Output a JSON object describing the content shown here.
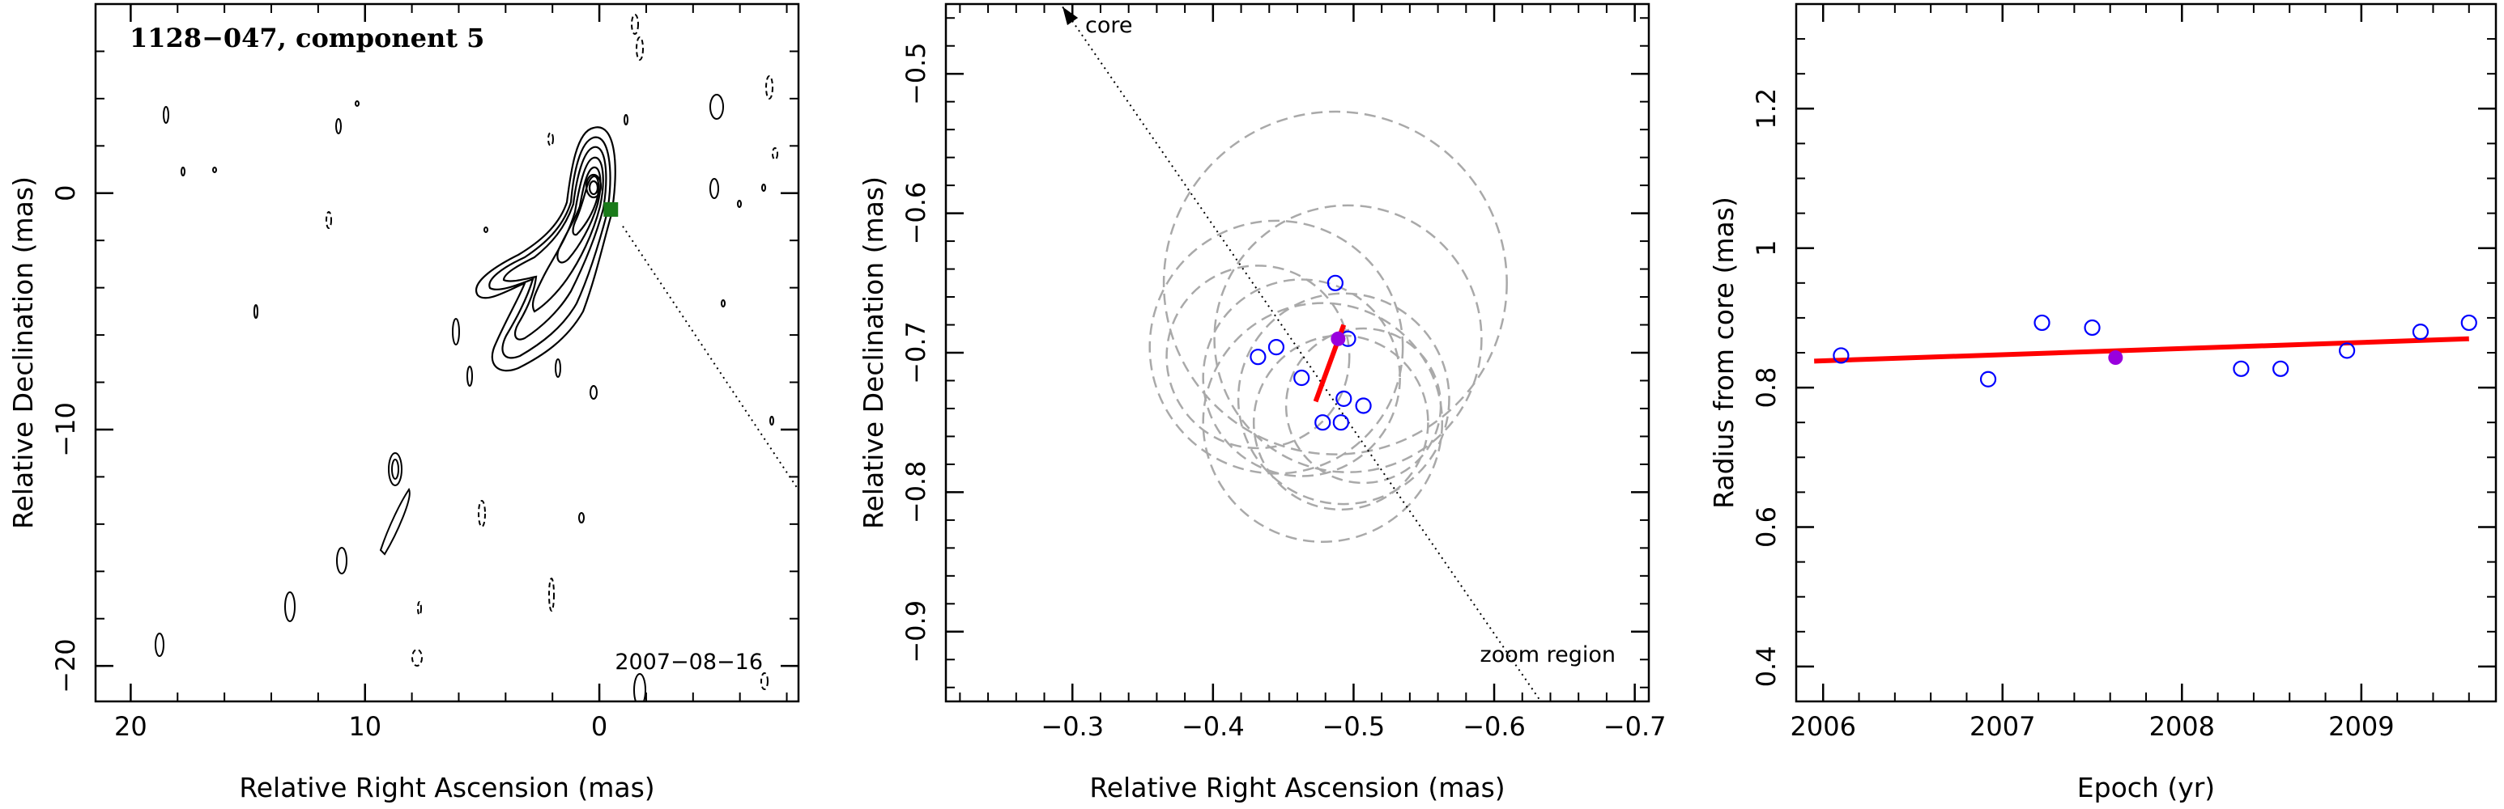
{
  "colors": {
    "contour": "#000000",
    "component_marker": "#1a7a1a",
    "circles": "#a9a9a9",
    "epoch_points": "#0000ff",
    "current_point": "#9900dd",
    "fit_line": "#ff0000",
    "direction_line": "#000000"
  },
  "chart_data": [
    {
      "type": "contour",
      "title": "1128−047, component 5",
      "epoch_label": "2007−08−16",
      "xlabel": "Relative Right Ascension (mas)",
      "ylabel": "Relative Declination (mas)",
      "xlim": [
        21.5,
        -8.5
      ],
      "ylim": [
        -21.5,
        8
      ],
      "xticks": [
        {
          "v": 20,
          "label": "20"
        },
        {
          "v": 10,
          "label": "10"
        },
        {
          "v": 0,
          "label": "0"
        }
      ],
      "yticks": [
        {
          "v": 0,
          "label": "0"
        },
        {
          "v": -10,
          "label": "−10"
        },
        {
          "v": -20,
          "label": "−20"
        }
      ],
      "component_position": {
        "x": -0.49,
        "y": -0.69
      },
      "direction_line": [
        {
          "x": -1.0,
          "y": -1.4
        },
        {
          "x": -8.8,
          "y": -13.0
        }
      ]
    },
    {
      "type": "scatter",
      "xlabel": "Relative Right Ascension (mas)",
      "ylabel": "Relative Declination (mas)",
      "xlim": [
        -0.21,
        -0.71
      ],
      "ylim": [
        -0.95,
        -0.45
      ],
      "xticks": [
        {
          "v": -0.3,
          "label": "−0.3"
        },
        {
          "v": -0.4,
          "label": "−0.4"
        },
        {
          "v": -0.5,
          "label": "−0.5"
        },
        {
          "v": -0.6,
          "label": "−0.6"
        },
        {
          "v": -0.7,
          "label": "−0.7"
        }
      ],
      "yticks": [
        {
          "v": -0.5,
          "label": "−0.5"
        },
        {
          "v": -0.6,
          "label": "−0.6"
        },
        {
          "v": -0.7,
          "label": "−0.7"
        },
        {
          "v": -0.8,
          "label": "−0.8"
        },
        {
          "v": -0.9,
          "label": "−0.9"
        }
      ],
      "core_label": "core",
      "zoom_label": "zoom region",
      "core_line": [
        {
          "x": -0.293,
          "y": -0.452
        },
        {
          "x": -0.64,
          "y": -0.96
        }
      ],
      "epoch_points": [
        {
          "x": -0.432,
          "y": -0.703
        },
        {
          "x": -0.445,
          "y": -0.696
        },
        {
          "x": -0.463,
          "y": -0.718
        },
        {
          "x": -0.478,
          "y": -0.75
        },
        {
          "x": -0.487,
          "y": -0.65
        },
        {
          "x": -0.491,
          "y": -0.75
        },
        {
          "x": -0.493,
          "y": -0.733
        },
        {
          "x": -0.496,
          "y": -0.69
        },
        {
          "x": -0.507,
          "y": -0.738
        }
      ],
      "current_point": {
        "x": -0.489,
        "y": -0.69
      },
      "fit_line": [
        {
          "x": -0.473,
          "y": -0.735
        },
        {
          "x": -0.493,
          "y": -0.68
        }
      ],
      "error_circles": [
        {
          "x": -0.432,
          "y": -0.703,
          "r": 0.065
        },
        {
          "x": -0.445,
          "y": -0.696,
          "r": 0.09
        },
        {
          "x": -0.463,
          "y": -0.718,
          "r": 0.07
        },
        {
          "x": -0.478,
          "y": -0.75,
          "r": 0.085
        },
        {
          "x": -0.487,
          "y": -0.65,
          "r": 0.122
        },
        {
          "x": -0.491,
          "y": -0.75,
          "r": 0.062
        },
        {
          "x": -0.493,
          "y": -0.733,
          "r": 0.075
        },
        {
          "x": -0.496,
          "y": -0.69,
          "r": 0.095
        },
        {
          "x": -0.507,
          "y": -0.738,
          "r": 0.055
        }
      ]
    },
    {
      "type": "scatter",
      "xlabel": "Epoch (yr)",
      "ylabel": "Radius from core (mas)",
      "xlim": [
        2005.85,
        2009.75
      ],
      "ylim": [
        0.35,
        1.35
      ],
      "xticks": [
        {
          "v": 2006,
          "label": "2006"
        },
        {
          "v": 2007,
          "label": "2007"
        },
        {
          "v": 2008,
          "label": "2008"
        },
        {
          "v": 2009,
          "label": "2009"
        }
      ],
      "yticks": [
        {
          "v": 0.4,
          "label": "0.4"
        },
        {
          "v": 0.6,
          "label": "0.6"
        },
        {
          "v": 0.8,
          "label": "0.8"
        },
        {
          "v": 1.0,
          "label": "1"
        },
        {
          "v": 1.2,
          "label": "1.2"
        }
      ],
      "points": [
        {
          "x": 2006.1,
          "y": 0.846
        },
        {
          "x": 2006.92,
          "y": 0.812
        },
        {
          "x": 2007.22,
          "y": 0.893
        },
        {
          "x": 2007.5,
          "y": 0.886
        },
        {
          "x": 2008.33,
          "y": 0.827
        },
        {
          "x": 2008.55,
          "y": 0.827
        },
        {
          "x": 2008.92,
          "y": 0.853
        },
        {
          "x": 2009.33,
          "y": 0.88
        },
        {
          "x": 2009.6,
          "y": 0.893
        }
      ],
      "current_point": {
        "x": 2007.63,
        "y": 0.843
      },
      "fit_line": [
        {
          "x": 2005.95,
          "y": 0.838
        },
        {
          "x": 2009.6,
          "y": 0.87
        }
      ]
    }
  ]
}
